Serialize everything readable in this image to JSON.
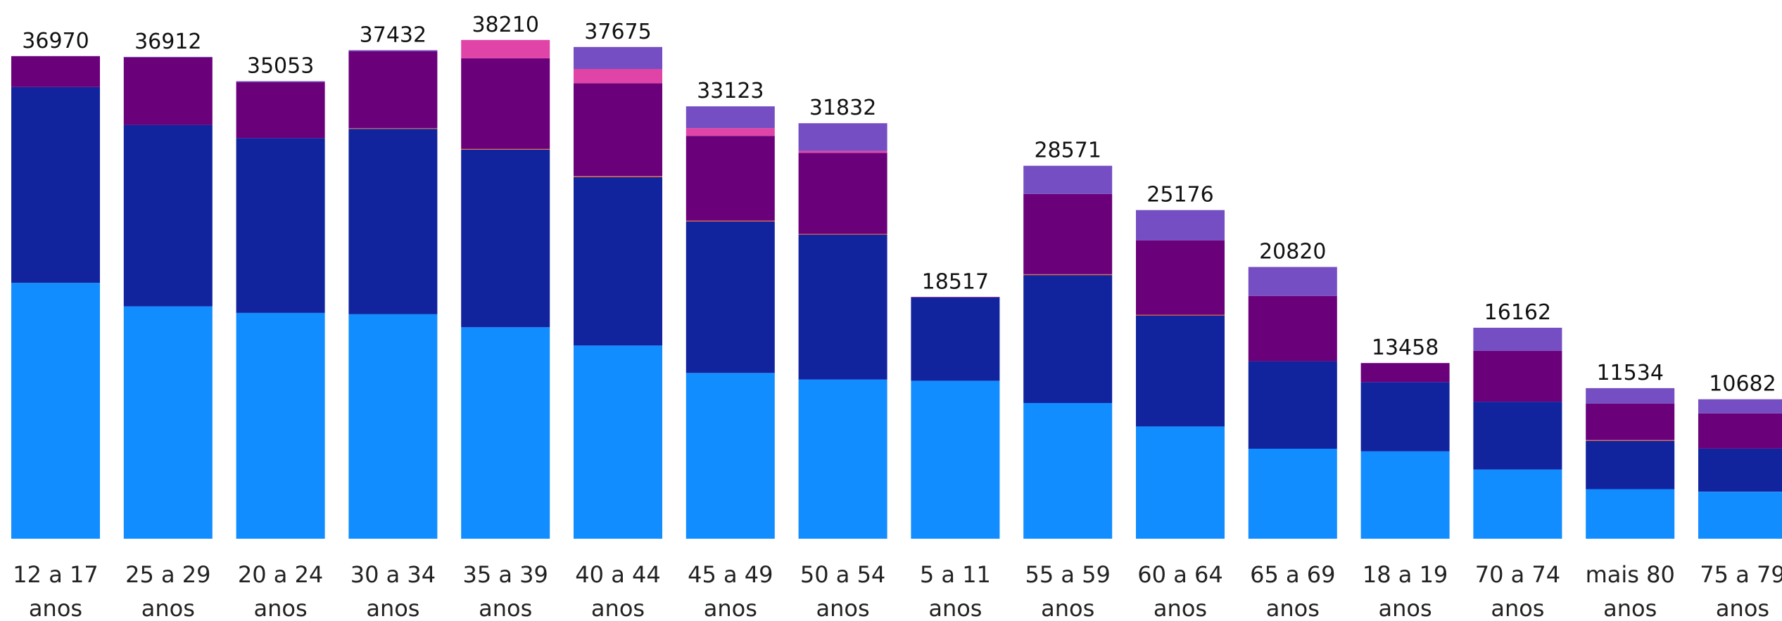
{
  "chart_data": {
    "type": "bar",
    "stacked": true,
    "grid": false,
    "ylim": [
      0,
      40000
    ],
    "categories": [
      [
        "12 a 17",
        "anos"
      ],
      [
        "25 a 29",
        "anos"
      ],
      [
        "20 a 24",
        "anos"
      ],
      [
        "30 a 34",
        "anos"
      ],
      [
        "35 a 39",
        "anos"
      ],
      [
        "40 a 44",
        "anos"
      ],
      [
        "45 a 49",
        "anos"
      ],
      [
        "50 a 54",
        "anos"
      ],
      [
        "5 a 11",
        "anos"
      ],
      [
        "55 a 59",
        "anos"
      ],
      [
        "60 a 64",
        "anos"
      ],
      [
        "65 a 69",
        "anos"
      ],
      [
        "18 a 19",
        "anos"
      ],
      [
        "70 a 74",
        "anos"
      ],
      [
        "mais 80",
        "anos"
      ],
      [
        "75 a 79",
        "anos"
      ]
    ],
    "totals": [
      36970,
      36912,
      35053,
      37432,
      38210,
      37675,
      33123,
      31832,
      18517,
      28571,
      25176,
      20820,
      13458,
      16162,
      11534,
      10682
    ],
    "series": [
      {
        "color": "#118dff",
        "values": [
          19600,
          17800,
          17300,
          17200,
          16200,
          14800,
          12700,
          12200,
          12100,
          10400,
          8600,
          6900,
          6700,
          5300,
          3800,
          3600
        ]
      },
      {
        "color": "#12239e",
        "values": [
          15000,
          13900,
          13400,
          14200,
          13600,
          12900,
          11600,
          11100,
          6400,
          9800,
          8500,
          6700,
          5300,
          5200,
          3700,
          3300
        ]
      },
      {
        "color": "#e66c37",
        "values": [
          0,
          0,
          0,
          50,
          60,
          70,
          60,
          60,
          0,
          60,
          60,
          0,
          0,
          0,
          60,
          0
        ]
      },
      {
        "color": "#6b007b",
        "values": [
          2370,
          5200,
          4280,
          5900,
          6950,
          7120,
          6500,
          6200,
          17,
          6150,
          5700,
          5000,
          1458,
          3900,
          2800,
          2700
        ]
      },
      {
        "color": "#e044a7",
        "values": [
          0,
          0,
          0,
          0,
          1400,
          1100,
          600,
          150,
          0,
          0,
          0,
          0,
          0,
          0,
          0,
          0
        ]
      },
      {
        "color": "#744ec2",
        "values": [
          0,
          12,
          73,
          82,
          0,
          1685,
          1663,
          2122,
          0,
          2161,
          2316,
          2220,
          0,
          1762,
          1174,
          1082
        ]
      }
    ]
  }
}
